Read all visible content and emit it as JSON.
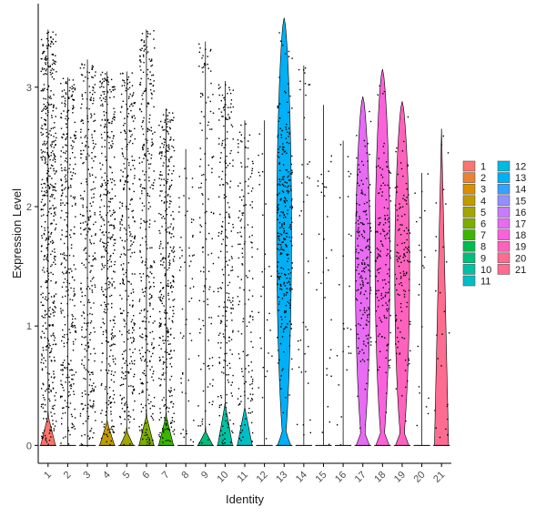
{
  "chart_data": {
    "type": "violin",
    "xlabel": "Identity",
    "ylabel": "Expression Level",
    "ylim": [
      -0.15,
      3.7
    ],
    "y_ticks": [
      0,
      1,
      2,
      3
    ],
    "legend_position": "right",
    "legend_columns": 2,
    "points_shown": true,
    "grid": false,
    "categories": [
      "1",
      "2",
      "3",
      "4",
      "5",
      "6",
      "7",
      "8",
      "9",
      "10",
      "11",
      "12",
      "13",
      "14",
      "15",
      "16",
      "17",
      "18",
      "19",
      "20",
      "21"
    ],
    "series": [
      {
        "name": "1",
        "color": "#F8766D",
        "max": 3.48,
        "density_shape": "zero_peak",
        "zero_bulge_height": 0.25,
        "zero_bulge_halfwidth": 0.45,
        "point_density": 1.0
      },
      {
        "name": "2",
        "color": "#EA8331",
        "max": 3.08,
        "density_shape": "flat",
        "zero_bulge_height": 0.0,
        "zero_bulge_halfwidth": 0.0,
        "point_density": 0.65
      },
      {
        "name": "3",
        "color": "#D89000",
        "max": 3.23,
        "density_shape": "flat",
        "zero_bulge_height": 0.0,
        "zero_bulge_halfwidth": 0.0,
        "point_density": 0.6
      },
      {
        "name": "4",
        "color": "#C09B00",
        "max": 3.13,
        "density_shape": "zero_peak",
        "zero_bulge_height": 0.2,
        "zero_bulge_halfwidth": 0.45,
        "point_density": 0.7
      },
      {
        "name": "5",
        "color": "#A3A500",
        "max": 3.13,
        "density_shape": "zero_peak",
        "zero_bulge_height": 0.12,
        "zero_bulge_halfwidth": 0.4,
        "point_density": 0.6
      },
      {
        "name": "6",
        "color": "#7CAE00",
        "max": 3.48,
        "density_shape": "zero_peak",
        "zero_bulge_height": 0.25,
        "zero_bulge_halfwidth": 0.45,
        "point_density": 0.65
      },
      {
        "name": "7",
        "color": "#39B600",
        "max": 2.82,
        "density_shape": "zero_peak",
        "zero_bulge_height": 0.25,
        "zero_bulge_halfwidth": 0.45,
        "point_density": 0.7
      },
      {
        "name": "8",
        "color": "#00BB4E",
        "max": 2.48,
        "density_shape": "flat",
        "zero_bulge_height": 0.0,
        "zero_bulge_halfwidth": 0.0,
        "point_density": 0.12
      },
      {
        "name": "9",
        "color": "#00BF7D",
        "max": 3.38,
        "density_shape": "zero_peak",
        "zero_bulge_height": 0.12,
        "zero_bulge_halfwidth": 0.45,
        "point_density": 0.25
      },
      {
        "name": "10",
        "color": "#00C1A3",
        "max": 3.05,
        "density_shape": "zero_peak",
        "zero_bulge_height": 0.35,
        "zero_bulge_halfwidth": 0.45,
        "point_density": 0.45
      },
      {
        "name": "11",
        "color": "#00BFC4",
        "max": 2.72,
        "density_shape": "zero_peak",
        "zero_bulge_height": 0.32,
        "zero_bulge_halfwidth": 0.45,
        "point_density": 0.3
      },
      {
        "name": "12",
        "color": "#00BAE0",
        "max": 2.72,
        "density_shape": "flat",
        "zero_bulge_height": 0.0,
        "zero_bulge_halfwidth": 0.0,
        "point_density": 0.06
      },
      {
        "name": "13",
        "color": "#00B0F6",
        "max": 3.58,
        "density_shape": "broad",
        "zero_bulge_height": 0.0,
        "zero_bulge_halfwidth": 0.45,
        "point_density": 0.55
      },
      {
        "name": "14",
        "color": "#35A2FF",
        "max": 3.18,
        "density_shape": "flat",
        "zero_bulge_height": 0.0,
        "zero_bulge_halfwidth": 0.0,
        "point_density": 0.08
      },
      {
        "name": "15",
        "color": "#9590FF",
        "max": 2.85,
        "density_shape": "flat",
        "zero_bulge_height": 0.0,
        "zero_bulge_halfwidth": 0.0,
        "point_density": 0.06
      },
      {
        "name": "16",
        "color": "#C77CFF",
        "max": 2.55,
        "density_shape": "flat",
        "zero_bulge_height": 0.0,
        "zero_bulge_halfwidth": 0.0,
        "point_density": 0.05
      },
      {
        "name": "17",
        "color": "#E76BF3",
        "max": 2.92,
        "density_shape": "broad",
        "zero_bulge_height": 0.0,
        "zero_bulge_halfwidth": 0.45,
        "point_density": 0.35
      },
      {
        "name": "18",
        "color": "#FA62DB",
        "max": 3.15,
        "density_shape": "broad",
        "zero_bulge_height": 0.0,
        "zero_bulge_halfwidth": 0.45,
        "point_density": 0.3
      },
      {
        "name": "19",
        "color": "#FF62BC",
        "max": 2.88,
        "density_shape": "broad",
        "zero_bulge_height": 0.0,
        "zero_bulge_halfwidth": 0.45,
        "point_density": 0.25
      },
      {
        "name": "20",
        "color": "#FF6C91",
        "max": 2.28,
        "density_shape": "flat",
        "zero_bulge_height": 0.0,
        "zero_bulge_halfwidth": 0.0,
        "point_density": 0.04
      },
      {
        "name": "21",
        "color": "#FF6C91",
        "max": 2.65,
        "density_shape": "bottom_heavy",
        "zero_bulge_height": 0.0,
        "zero_bulge_halfwidth": 0.45,
        "point_density": 0.05
      }
    ]
  }
}
